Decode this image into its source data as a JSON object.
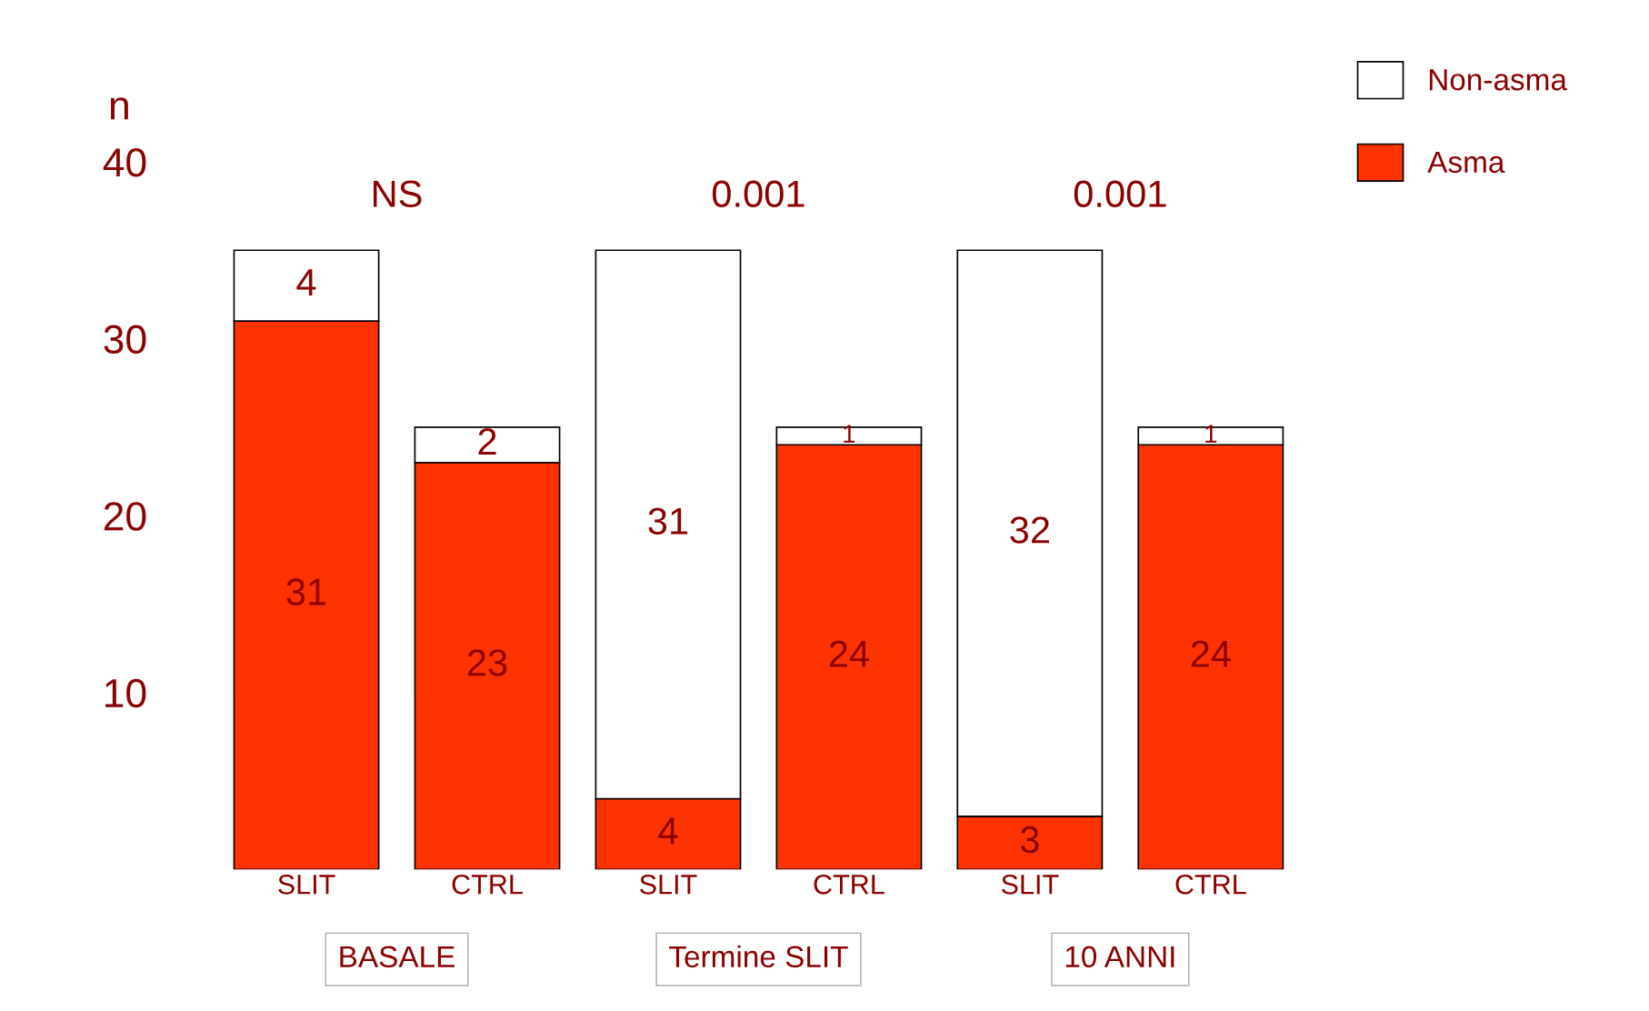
{
  "chart_data": {
    "type": "bar",
    "stacked": true,
    "ylabel": "n",
    "categories": [
      "SLIT",
      "CTRL",
      "SLIT",
      "CTRL",
      "SLIT",
      "CTRL"
    ],
    "series": [
      {
        "name": "Asma",
        "color": "#ff3300",
        "values": [
          31,
          23,
          4,
          24,
          3,
          24
        ]
      },
      {
        "name": "Non-asma",
        "color": "#ffffff",
        "values": [
          4,
          2,
          31,
          1,
          32,
          1
        ]
      }
    ],
    "ylim": [
      0,
      40
    ],
    "yticks": [
      10,
      20,
      30,
      40
    ],
    "data_labels": true,
    "legend": "top right",
    "grid": false,
    "annotations": [
      "NS",
      "0.001",
      "0.001",
      "BASALE",
      "Termine SLIT",
      "10 ANNI"
    ]
  }
}
